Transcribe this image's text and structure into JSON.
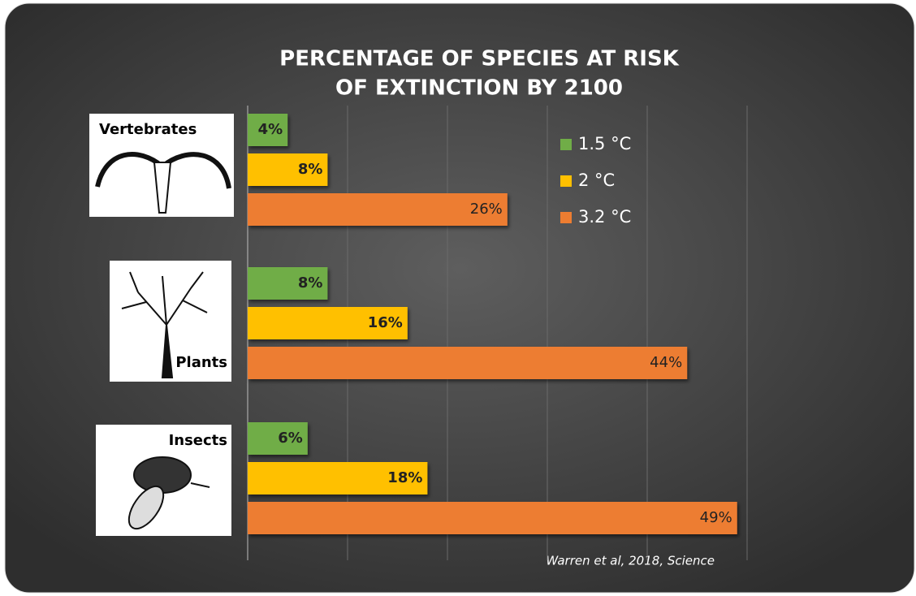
{
  "chart_data": {
    "type": "bar",
    "orientation": "horizontal",
    "title": [
      "PERCENTAGE OF SPECIES AT RISK",
      "OF EXTINCTION BY 2100"
    ],
    "categories": [
      "Vertebrates",
      "Plants",
      "Insects"
    ],
    "series": [
      {
        "name": "1.5 °C",
        "color": "#70ad47",
        "values": [
          4,
          8,
          6
        ],
        "value_labels": [
          "4%",
          "8%",
          "6%"
        ]
      },
      {
        "name": "2 °C",
        "color": "#ffc000",
        "values": [
          8,
          16,
          18
        ],
        "value_labels": [
          "8%",
          "16%",
          "18%"
        ]
      },
      {
        "name": "3.2 °C",
        "color": "#ed7d31",
        "values": [
          26,
          44,
          49
        ],
        "value_labels": [
          "26%",
          "44%",
          "49%"
        ]
      }
    ],
    "xlim": [
      0,
      50
    ],
    "xticks": [
      0,
      10,
      20,
      30,
      40,
      50
    ],
    "grid": true,
    "legend": "top-right",
    "source": "Warren et al, 2018, Science"
  }
}
